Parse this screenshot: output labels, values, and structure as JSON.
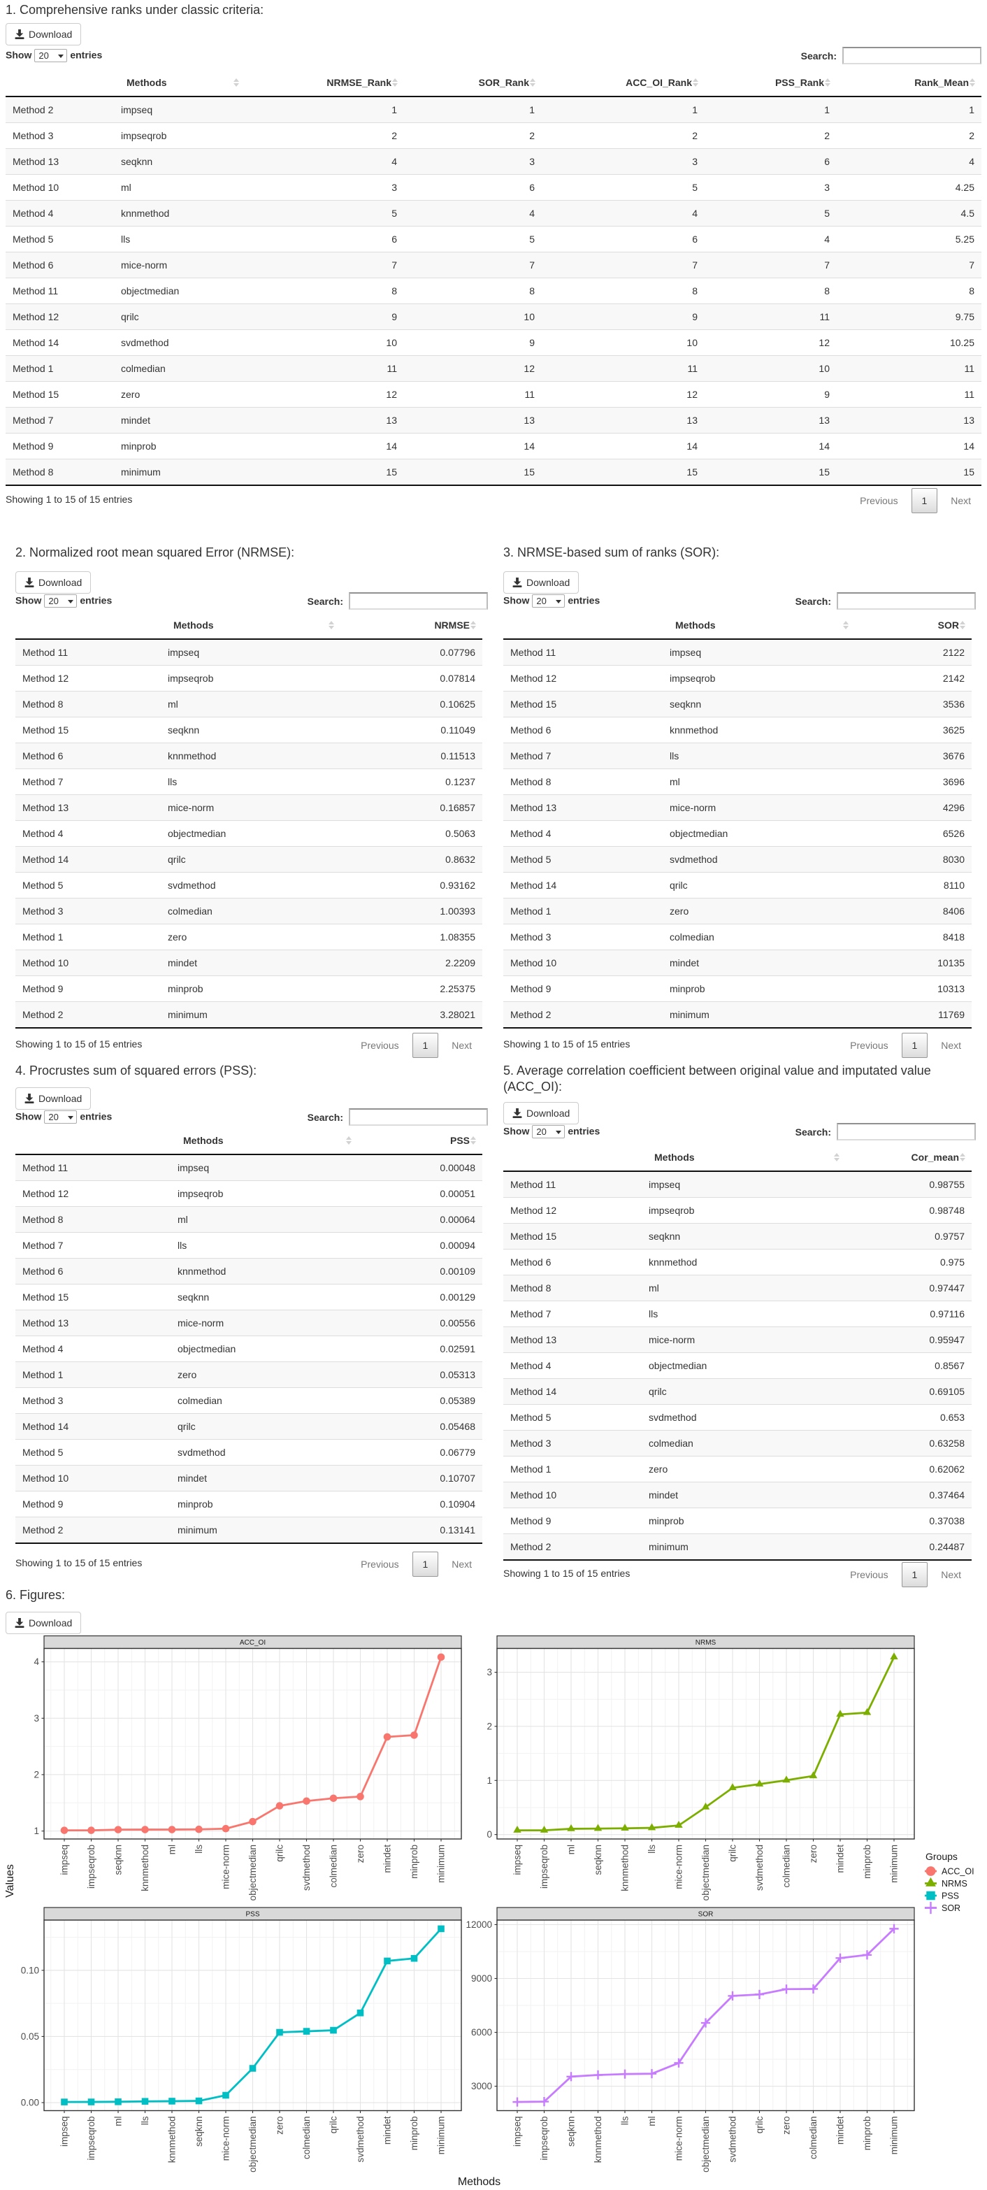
{
  "ui": {
    "download_label": "Download",
    "length_before": "Show",
    "length_value": "20",
    "length_after": "entries",
    "search_label": "Search:",
    "info_text": "Showing 1 to 15 of 15 entries",
    "prev_label": "Previous",
    "page_label": "1",
    "next_label": "Next"
  },
  "sections": [
    {
      "title": "1. Comprehensive ranks under classic criteria:",
      "table": {
        "headers": [
          "",
          "Methods",
          "NRMSE_Rank",
          "SOR_Rank",
          "ACC_OI_Rank",
          "PSS_Rank",
          "Rank_Mean"
        ],
        "col_align": [
          "left",
          "left",
          "num",
          "num",
          "num",
          "num",
          "num"
        ],
        "rows": [
          [
            "Method 2",
            "impseq",
            "1",
            "1",
            "1",
            "1",
            "1"
          ],
          [
            "Method 3",
            "impseqrob",
            "2",
            "2",
            "2",
            "2",
            "2"
          ],
          [
            "Method 13",
            "seqknn",
            "4",
            "3",
            "3",
            "6",
            "4"
          ],
          [
            "Method 10",
            "ml",
            "3",
            "6",
            "5",
            "3",
            "4.25"
          ],
          [
            "Method 4",
            "knnmethod",
            "5",
            "4",
            "4",
            "5",
            "4.5"
          ],
          [
            "Method 5",
            "lls",
            "6",
            "5",
            "6",
            "4",
            "5.25"
          ],
          [
            "Method 6",
            "mice-norm",
            "7",
            "7",
            "7",
            "7",
            "7"
          ],
          [
            "Method 11",
            "objectmedian",
            "8",
            "8",
            "8",
            "8",
            "8"
          ],
          [
            "Method 12",
            "qrilc",
            "9",
            "10",
            "9",
            "11",
            "9.75"
          ],
          [
            "Method 14",
            "svdmethod",
            "10",
            "9",
            "10",
            "12",
            "10.25"
          ],
          [
            "Method 1",
            "colmedian",
            "11",
            "12",
            "11",
            "10",
            "11"
          ],
          [
            "Method 15",
            "zero",
            "12",
            "11",
            "12",
            "9",
            "11"
          ],
          [
            "Method 7",
            "mindet",
            "13",
            "13",
            "13",
            "13",
            "13"
          ],
          [
            "Method 9",
            "minprob",
            "14",
            "14",
            "14",
            "14",
            "14"
          ],
          [
            "Method 8",
            "minimum",
            "15",
            "15",
            "15",
            "15",
            "15"
          ]
        ]
      }
    },
    {
      "title": "2. Normalized root mean squared Error (NRMSE):",
      "table": {
        "headers": [
          "",
          "Methods",
          "NRMSE"
        ],
        "col_align": [
          "left",
          "left",
          "num"
        ],
        "rows": [
          [
            "Method 11",
            "impseq",
            "0.07796"
          ],
          [
            "Method 12",
            "impseqrob",
            "0.07814"
          ],
          [
            "Method 8",
            "ml",
            "0.10625"
          ],
          [
            "Method 15",
            "seqknn",
            "0.11049"
          ],
          [
            "Method 6",
            "knnmethod",
            "0.11513"
          ],
          [
            "Method 7",
            "lls",
            "0.1237"
          ],
          [
            "Method 13",
            "mice-norm",
            "0.16857"
          ],
          [
            "Method 4",
            "objectmedian",
            "0.5063"
          ],
          [
            "Method 14",
            "qrilc",
            "0.8632"
          ],
          [
            "Method 5",
            "svdmethod",
            "0.93162"
          ],
          [
            "Method 3",
            "colmedian",
            "1.00393"
          ],
          [
            "Method 1",
            "zero",
            "1.08355"
          ],
          [
            "Method 10",
            "mindet",
            "2.2209"
          ],
          [
            "Method 9",
            "minprob",
            "2.25375"
          ],
          [
            "Method 2",
            "minimum",
            "3.28021"
          ]
        ]
      }
    },
    {
      "title": "3. NRMSE-based sum of ranks (SOR):",
      "table": {
        "headers": [
          "",
          "Methods",
          "SOR"
        ],
        "col_align": [
          "left",
          "left",
          "num"
        ],
        "rows": [
          [
            "Method 11",
            "impseq",
            "2122"
          ],
          [
            "Method 12",
            "impseqrob",
            "2142"
          ],
          [
            "Method 15",
            "seqknn",
            "3536"
          ],
          [
            "Method 6",
            "knnmethod",
            "3625"
          ],
          [
            "Method 7",
            "lls",
            "3676"
          ],
          [
            "Method 8",
            "ml",
            "3696"
          ],
          [
            "Method 13",
            "mice-norm",
            "4296"
          ],
          [
            "Method 4",
            "objectmedian",
            "6526"
          ],
          [
            "Method 5",
            "svdmethod",
            "8030"
          ],
          [
            "Method 14",
            "qrilc",
            "8110"
          ],
          [
            "Method 1",
            "zero",
            "8406"
          ],
          [
            "Method 3",
            "colmedian",
            "8418"
          ],
          [
            "Method 10",
            "mindet",
            "10135"
          ],
          [
            "Method 9",
            "minprob",
            "10313"
          ],
          [
            "Method 2",
            "minimum",
            "11769"
          ]
        ]
      }
    },
    {
      "title": "4. Procrustes sum of squared errors (PSS):",
      "table": {
        "headers": [
          "",
          "Methods",
          "PSS"
        ],
        "col_align": [
          "left",
          "left",
          "num"
        ],
        "rows": [
          [
            "Method 11",
            "impseq",
            "0.00048"
          ],
          [
            "Method 12",
            "impseqrob",
            "0.00051"
          ],
          [
            "Method 8",
            "ml",
            "0.00064"
          ],
          [
            "Method 7",
            "lls",
            "0.00094"
          ],
          [
            "Method 6",
            "knnmethod",
            "0.00109"
          ],
          [
            "Method 15",
            "seqknn",
            "0.00129"
          ],
          [
            "Method 13",
            "mice-norm",
            "0.00556"
          ],
          [
            "Method 4",
            "objectmedian",
            "0.02591"
          ],
          [
            "Method 1",
            "zero",
            "0.05313"
          ],
          [
            "Method 3",
            "colmedian",
            "0.05389"
          ],
          [
            "Method 14",
            "qrilc",
            "0.05468"
          ],
          [
            "Method 5",
            "svdmethod",
            "0.06779"
          ],
          [
            "Method 10",
            "mindet",
            "0.10707"
          ],
          [
            "Method 9",
            "minprob",
            "0.10904"
          ],
          [
            "Method 2",
            "minimum",
            "0.13141"
          ]
        ]
      }
    },
    {
      "title": "5. Average correlation coefficient between original value and imputated value (ACC_OI):",
      "table": {
        "headers": [
          "",
          "Methods",
          "Cor_mean"
        ],
        "col_align": [
          "left",
          "left",
          "num"
        ],
        "rows": [
          [
            "Method 11",
            "impseq",
            "0.98755"
          ],
          [
            "Method 12",
            "impseqrob",
            "0.98748"
          ],
          [
            "Method 15",
            "seqknn",
            "0.9757"
          ],
          [
            "Method 6",
            "knnmethod",
            "0.975"
          ],
          [
            "Method 8",
            "ml",
            "0.97447"
          ],
          [
            "Method 7",
            "lls",
            "0.97116"
          ],
          [
            "Method 13",
            "mice-norm",
            "0.95947"
          ],
          [
            "Method 4",
            "objectmedian",
            "0.8567"
          ],
          [
            "Method 14",
            "qrilc",
            "0.69105"
          ],
          [
            "Method 5",
            "svdmethod",
            "0.653"
          ],
          [
            "Method 3",
            "colmedian",
            "0.63258"
          ],
          [
            "Method 1",
            "zero",
            "0.62062"
          ],
          [
            "Method 10",
            "mindet",
            "0.37464"
          ],
          [
            "Method 9",
            "minprob",
            "0.37038"
          ],
          [
            "Method 2",
            "minimum",
            "0.24487"
          ]
        ]
      }
    },
    {
      "title": "6. Figures:"
    }
  ],
  "chart_data": {
    "type": "line",
    "ylabel": "Values",
    "xlabel": "Methods",
    "legend_title": "Groups",
    "legend_position": "right",
    "grid": true,
    "facets": [
      {
        "name": "ACC_OI",
        "marker": "circle",
        "color": "#F8766D",
        "categories": [
          "impseq",
          "impseqrob",
          "seqknn",
          "knnmethod",
          "ml",
          "lls",
          "mice-norm",
          "objectmedian",
          "qrilc",
          "svdmethod",
          "colmedian",
          "zero",
          "mindet",
          "minprob",
          "minimum"
        ],
        "values": [
          1.01261,
          1.01268,
          1.02491,
          1.02564,
          1.0262,
          1.0297,
          1.04224,
          1.16727,
          1.44707,
          1.53139,
          1.58083,
          1.61129,
          2.66923,
          2.69993,
          4.0838
        ],
        "yticks": [
          1,
          2,
          3,
          4
        ],
        "ytick_labels": [
          "1",
          "2",
          "3",
          "4"
        ],
        "yminor": [
          1.5,
          2.5,
          3.5
        ]
      },
      {
        "name": "NRMS",
        "marker": "triangle",
        "color": "#7CAE00",
        "categories": [
          "impseq",
          "impseqrob",
          "ml",
          "seqknn",
          "knnmethod",
          "lls",
          "mice-norm",
          "objectmedian",
          "qrilc",
          "svdmethod",
          "colmedian",
          "zero",
          "mindet",
          "minprob",
          "minimum"
        ],
        "values": [
          0.07796,
          0.07814,
          0.10625,
          0.11049,
          0.11513,
          0.1237,
          0.16857,
          0.5063,
          0.8632,
          0.93162,
          1.00393,
          1.08355,
          2.2209,
          2.25375,
          3.28021
        ],
        "yticks": [
          0,
          1,
          2,
          3
        ],
        "ytick_labels": [
          "0",
          "1",
          "2",
          "3"
        ],
        "yminor": [
          0.5,
          1.5,
          2.5
        ]
      },
      {
        "name": "PSS",
        "marker": "square",
        "color": "#00BFC4",
        "categories": [
          "impseq",
          "impseqrob",
          "ml",
          "lls",
          "knnmethod",
          "seqknn",
          "mice-norm",
          "objectmedian",
          "zero",
          "colmedian",
          "qrilc",
          "svdmethod",
          "mindet",
          "minprob",
          "minimum"
        ],
        "values": [
          0.00048,
          0.00051,
          0.00064,
          0.00094,
          0.00109,
          0.00129,
          0.00556,
          0.02591,
          0.05313,
          0.05389,
          0.05468,
          0.06779,
          0.10707,
          0.10904,
          0.13141
        ],
        "yticks": [
          0,
          0.05,
          0.1
        ],
        "ytick_labels": [
          "0.00",
          "0.05",
          "0.10"
        ],
        "yminor": [
          0.025,
          0.075,
          0.125
        ]
      },
      {
        "name": "SOR",
        "marker": "plus",
        "color": "#C77CFF",
        "categories": [
          "impseq",
          "impseqrob",
          "seqknn",
          "knnmethod",
          "lls",
          "ml",
          "mice-norm",
          "objectmedian",
          "svdmethod",
          "qrilc",
          "zero",
          "colmedian",
          "mindet",
          "minprob",
          "minimum"
        ],
        "values": [
          2122,
          2142,
          3536,
          3625,
          3676,
          3696,
          4296,
          6526,
          8030,
          8110,
          8406,
          8418,
          10135,
          10313,
          11769
        ],
        "yticks": [
          3000,
          6000,
          9000,
          12000
        ],
        "ytick_labels": [
          "3000",
          "6000",
          "9000",
          "12000"
        ],
        "yminor": [
          4500,
          7500,
          10500
        ]
      }
    ],
    "legend_entries": [
      "ACC_OI",
      "NRMS",
      "PSS",
      "SOR"
    ]
  },
  "layout": {
    "table_widths": {
      "t0": [
        155,
        188,
        227,
        197,
        233,
        189,
        207
      ],
      "t1": [
        208,
        257,
        203
      ],
      "t2": [
        228,
        275,
        167
      ],
      "t3": [
        222,
        268,
        178
      ],
      "t4": [
        198,
        292,
        180
      ]
    }
  }
}
